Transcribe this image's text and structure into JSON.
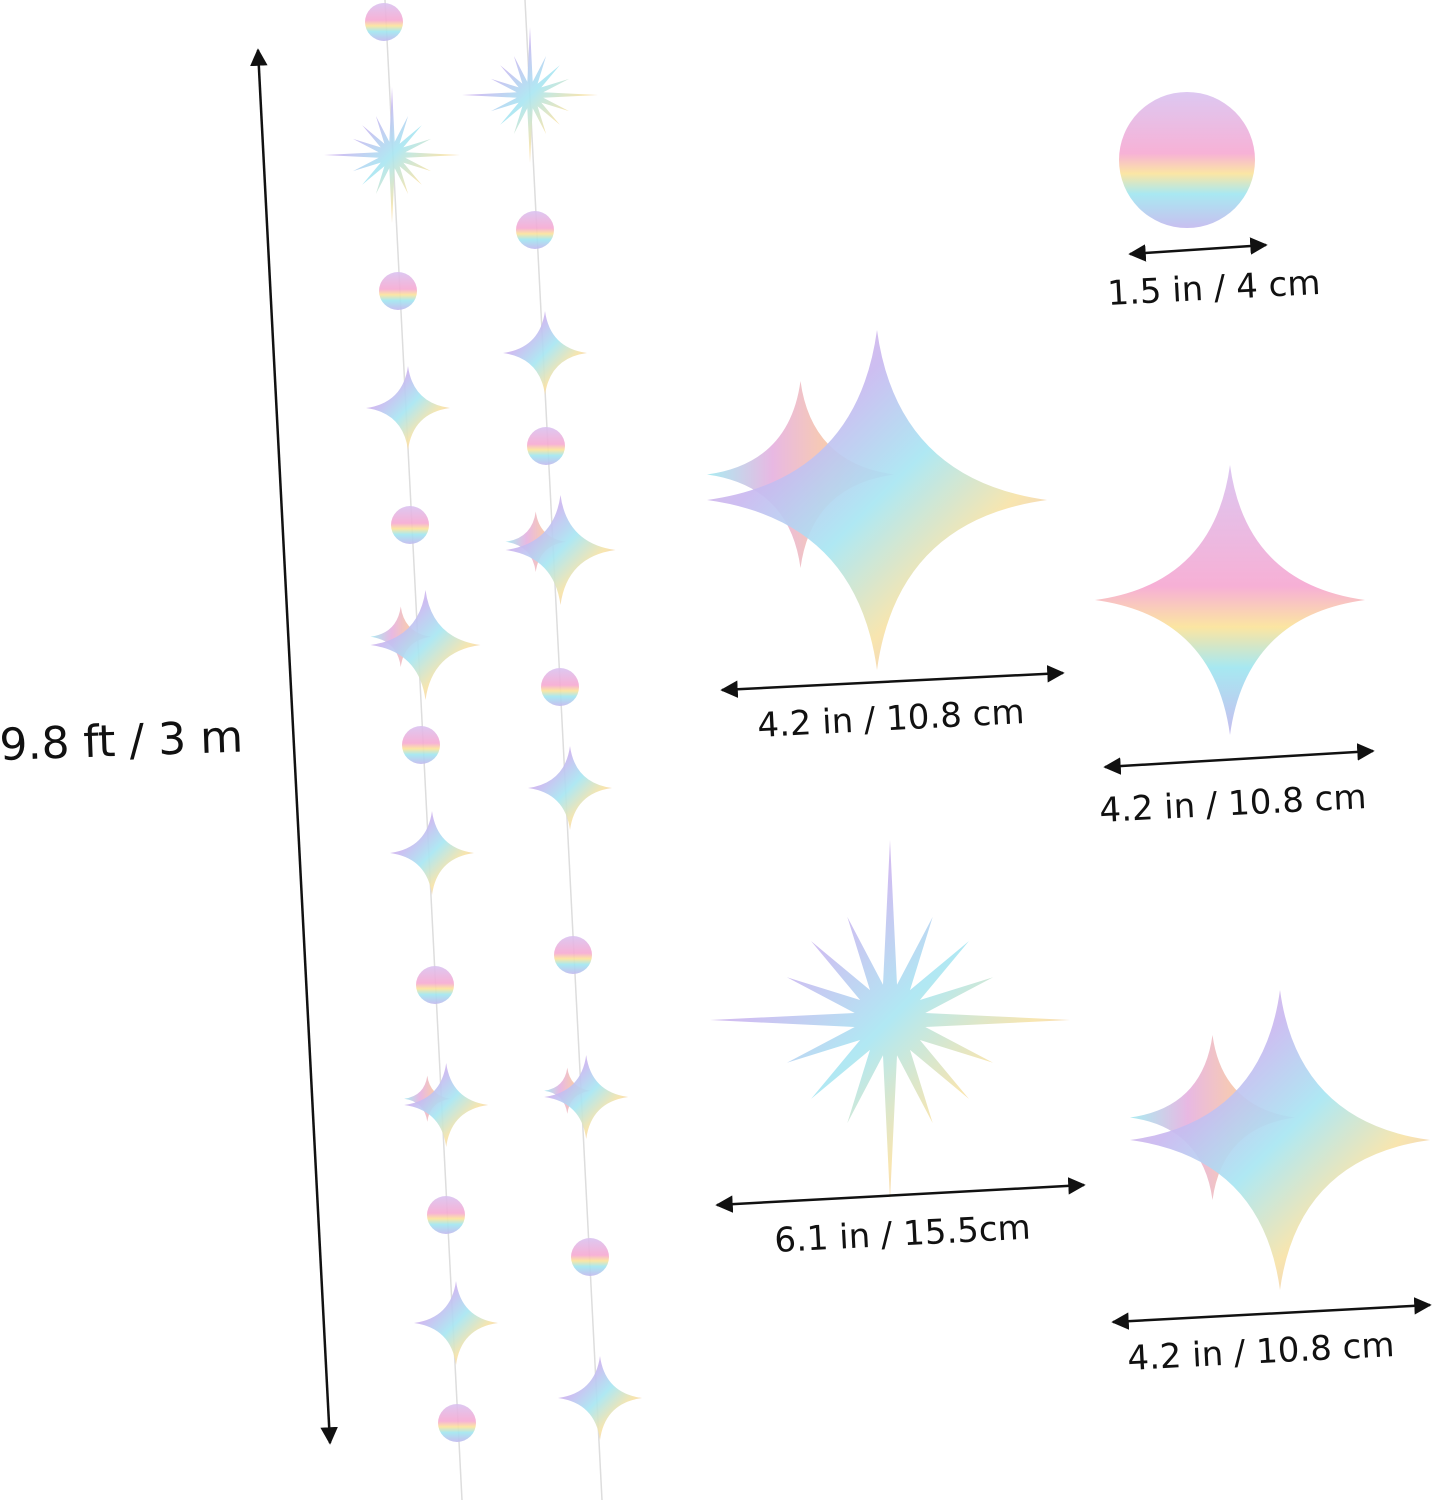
{
  "dimensions": {
    "length": "9.8 ft / 3 m",
    "circle": "1.5 in / 4 cm",
    "sparkle_star": "4.2 in / 10.8 cm",
    "four_point_star": "4.2 in / 10.8 cm",
    "burst_star": "6.1 in / 15.5cm",
    "double_star": "4.2 in / 10.8 cm"
  }
}
